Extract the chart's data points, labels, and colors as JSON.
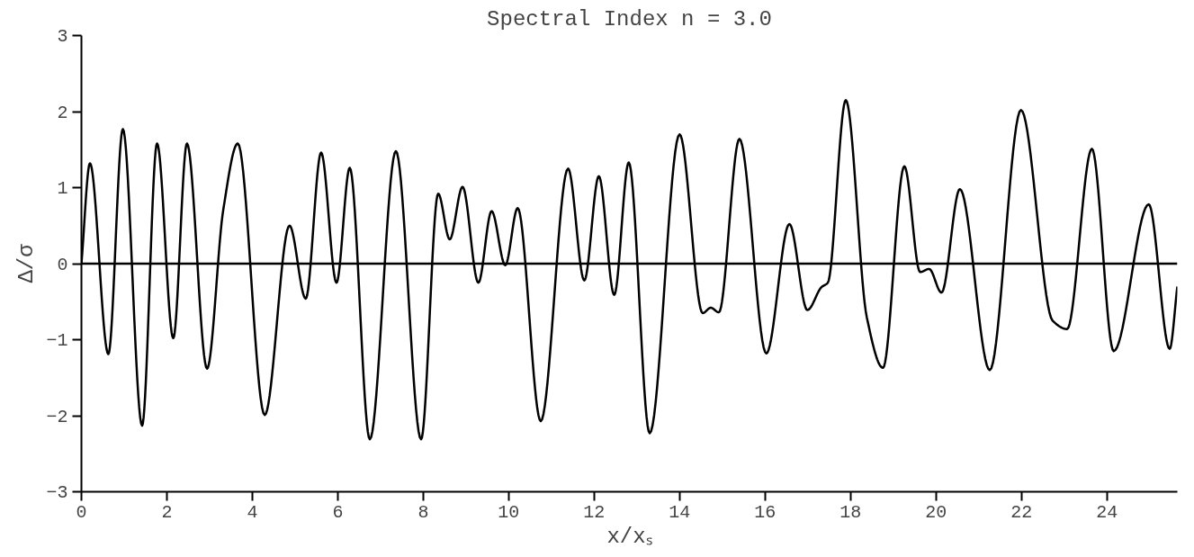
{
  "chart_data": {
    "type": "line",
    "title": "Spectral Index n = 3.0",
    "xlabel": "x/xₛ",
    "ylabel": "Δ/σ",
    "xlim": [
      0,
      25.65
    ],
    "ylim": [
      -3,
      3
    ],
    "xticks": [
      0,
      2,
      4,
      6,
      8,
      10,
      12,
      14,
      16,
      18,
      20,
      22,
      24
    ],
    "yticks": [
      -3,
      -2,
      -1,
      0,
      1,
      2,
      3
    ],
    "grid": false,
    "marker": "none",
    "line_style": "solid",
    "ref_lines": [
      {
        "axis": "y",
        "value": 0,
        "color": "#000000"
      }
    ],
    "series": [
      {
        "color": "#000000",
        "x": [
          0,
          0.2,
          0.63,
          0.97,
          1.42,
          1.77,
          2.15,
          2.47,
          2.94,
          3.32,
          3.66,
          4.29,
          4.87,
          5.25,
          5.61,
          5.97,
          6.28,
          6.75,
          7.36,
          7.95,
          8.35,
          8.62,
          8.92,
          9.29,
          9.6,
          9.92,
          10.21,
          10.75,
          11.39,
          11.77,
          12.11,
          12.47,
          12.81,
          13.3,
          14.0,
          14.54,
          14.73,
          14.92,
          15.4,
          16.03,
          16.57,
          16.99,
          17.32,
          17.47,
          17.89,
          18.38,
          18.76,
          19.26,
          19.63,
          19.84,
          20.13,
          20.56,
          21.26,
          21.99,
          22.73,
          23.07,
          23.65,
          24.16,
          24.98,
          25.47,
          25.65
        ],
        "values": [
          0,
          1.32,
          -1.19,
          1.77,
          -2.13,
          1.58,
          -0.98,
          1.58,
          -1.38,
          0.71,
          1.58,
          -1.99,
          0.5,
          -0.46,
          1.46,
          -0.25,
          1.26,
          -2.31,
          1.48,
          -2.31,
          0.92,
          0.32,
          1.01,
          -0.25,
          0.69,
          -0.02,
          0.73,
          -2.07,
          1.25,
          -0.22,
          1.15,
          -0.41,
          1.33,
          -2.23,
          1.7,
          -0.65,
          -0.58,
          -0.64,
          1.64,
          -1.18,
          0.52,
          -0.61,
          -0.31,
          -0.25,
          2.15,
          -0.7,
          -1.37,
          1.28,
          -0.11,
          -0.07,
          -0.38,
          0.98,
          -1.4,
          2.02,
          -0.75,
          -0.86,
          1.51,
          -1.15,
          0.78,
          -1.12,
          -0.3
        ]
      }
    ]
  }
}
